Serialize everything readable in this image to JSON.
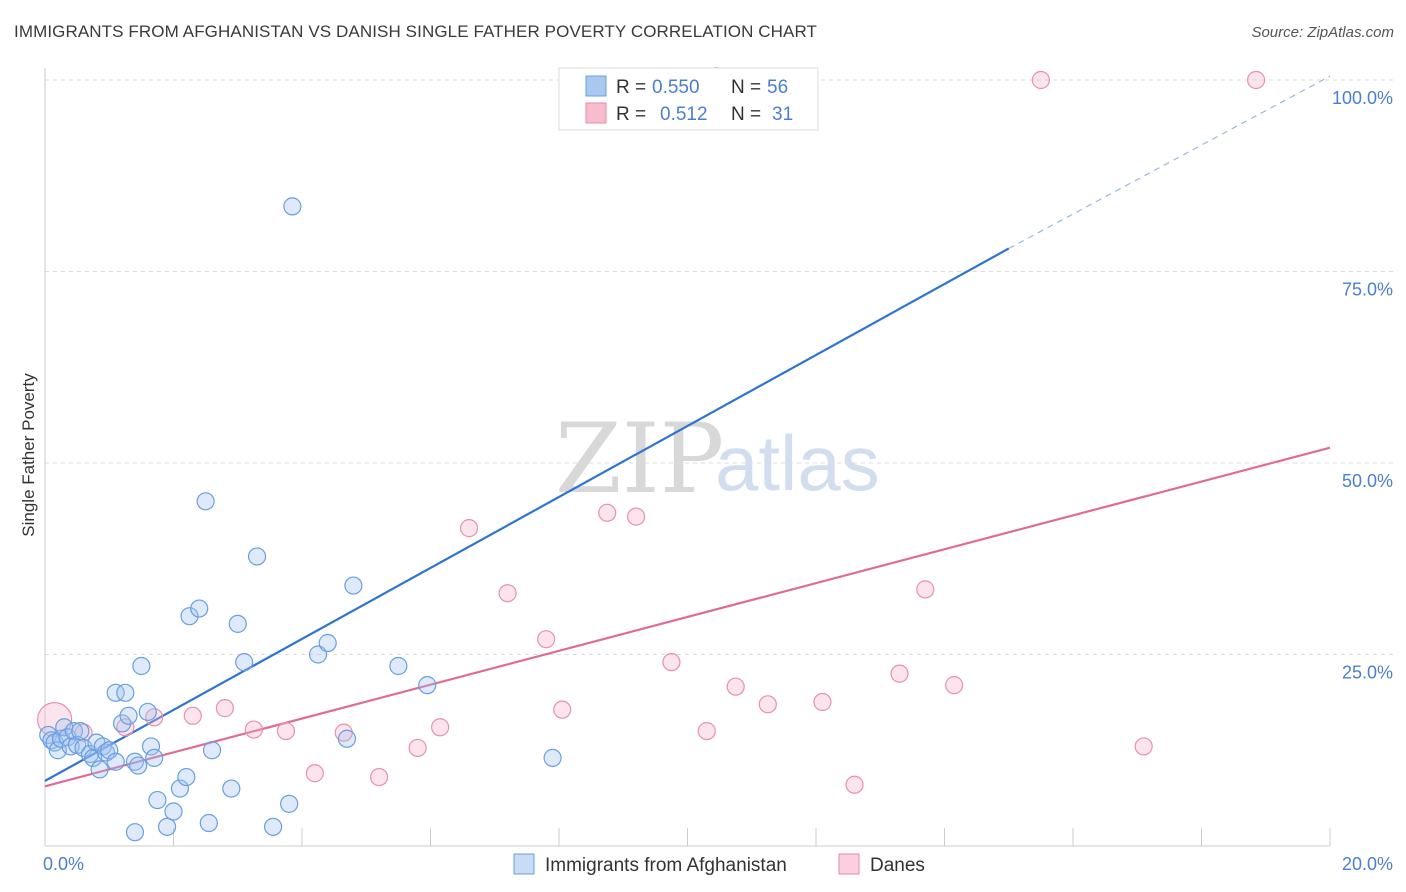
{
  "header": {
    "title": "IMMIGRANTS FROM AFGHANISTAN VS DANISH SINGLE FATHER POVERTY CORRELATION CHART",
    "source": "Source: ZipAtlas.com"
  },
  "watermark": {
    "zip": "ZIP",
    "atlas": "atlas"
  },
  "legend_top": [
    {
      "r_label": "R =",
      "r_value": "0.550",
      "n_label": "N =",
      "n_value": "56",
      "color": "#a9c8f0",
      "stroke": "#6a9ee0"
    },
    {
      "r_label": "R =",
      "r_value": "0.512",
      "n_label": "N =",
      "n_value": "31",
      "color": "#f7bccd",
      "stroke": "#e88aa8"
    }
  ],
  "legend_bottom": [
    {
      "label": "Immigrants from Afghanistan",
      "color": "#c6dcf7",
      "stroke": "#6a9ee0"
    },
    {
      "label": "Danes",
      "color": "#f9d0dc",
      "stroke": "#e88aa8"
    }
  ],
  "colors": {
    "blue_fill": "rgba(160,196,240,0.35)",
    "blue_stroke": "#6a9ee0",
    "blue_line": "#2f74d0",
    "pink_fill": "rgba(246,178,200,0.35)",
    "pink_stroke": "#e890ad",
    "pink_line": "#e06b94",
    "axis_label": "#4a7fd0",
    "grid": "#dddddd"
  },
  "chart_data": {
    "type": "scatter",
    "title": "IMMIGRANTS FROM AFGHANISTAN VS DANISH SINGLE FATHER POVERTY CORRELATION CHART",
    "xlabel": "",
    "ylabel": "Single Father Poverty",
    "xlim": [
      0,
      20
    ],
    "ylim": [
      0,
      100
    ],
    "x_tick_labels": [
      {
        "value": 0,
        "label": "0.0%"
      },
      {
        "value": 20,
        "label": "20.0%"
      }
    ],
    "y_tick_labels": [
      {
        "value": 25,
        "label": "25.0%"
      },
      {
        "value": 50,
        "label": "50.0%"
      },
      {
        "value": 75,
        "label": "75.0%"
      },
      {
        "value": 100,
        "label": "100.0%"
      }
    ],
    "series": [
      {
        "name": "Immigrants from Afghanistan",
        "R": 0.55,
        "N": 56,
        "trend": {
          "x0": 0,
          "y0": 8.5,
          "x1": 15,
          "y1": 78,
          "dash_x1": 20,
          "dash_y1": 100.5
        },
        "points": [
          [
            0.05,
            14.5
          ],
          [
            0.1,
            13.8
          ],
          [
            0.15,
            13.5
          ],
          [
            0.2,
            12.5
          ],
          [
            0.25,
            14
          ],
          [
            0.3,
            15.5
          ],
          [
            0.35,
            14.2
          ],
          [
            0.4,
            13
          ],
          [
            0.45,
            15
          ],
          [
            0.5,
            13.2
          ],
          [
            0.55,
            15
          ],
          [
            0.6,
            12.8
          ],
          [
            0.7,
            12
          ],
          [
            0.75,
            11.5
          ],
          [
            0.8,
            13.5
          ],
          [
            0.85,
            10
          ],
          [
            0.9,
            13
          ],
          [
            0.95,
            12.2
          ],
          [
            1.0,
            12.5
          ],
          [
            1.1,
            11
          ],
          [
            1.1,
            20
          ],
          [
            1.2,
            16
          ],
          [
            1.25,
            20
          ],
          [
            1.3,
            17
          ],
          [
            1.4,
            11
          ],
          [
            1.45,
            10.5
          ],
          [
            1.5,
            23.5
          ],
          [
            1.6,
            17.5
          ],
          [
            1.65,
            13
          ],
          [
            1.7,
            11.5
          ],
          [
            1.75,
            6
          ],
          [
            1.9,
            2.5
          ],
          [
            2.0,
            4.5
          ],
          [
            2.1,
            7.5
          ],
          [
            2.2,
            9
          ],
          [
            2.25,
            30
          ],
          [
            2.4,
            31
          ],
          [
            2.5,
            45
          ],
          [
            2.55,
            3
          ],
          [
            2.6,
            12.5
          ],
          [
            2.9,
            7.5
          ],
          [
            3.0,
            29
          ],
          [
            3.1,
            24
          ],
          [
            3.3,
            37.8
          ],
          [
            3.55,
            2.5
          ],
          [
            3.8,
            5.5
          ],
          [
            3.85,
            83.5
          ],
          [
            4.25,
            25
          ],
          [
            4.4,
            26.5
          ],
          [
            4.7,
            14
          ],
          [
            4.8,
            34
          ],
          [
            5.5,
            23.5
          ],
          [
            5.95,
            21
          ],
          [
            7.9,
            11.5
          ],
          [
            10.45,
            100.5
          ],
          [
            1.4,
            1.8
          ]
        ]
      },
      {
        "name": "Danes",
        "R": 0.512,
        "N": 31,
        "trend": {
          "x0": 0,
          "y0": 7.8,
          "x1": 20,
          "y1": 52
        },
        "points": [
          [
            0.15,
            16.5
          ],
          [
            0.6,
            14.8
          ],
          [
            1.25,
            15.5
          ],
          [
            1.7,
            16.8
          ],
          [
            2.3,
            17
          ],
          [
            2.8,
            18
          ],
          [
            3.25,
            15.2
          ],
          [
            3.75,
            15
          ],
          [
            4.2,
            9.5
          ],
          [
            4.65,
            14.8
          ],
          [
            5.2,
            9
          ],
          [
            5.8,
            12.8
          ],
          [
            6.15,
            15.5
          ],
          [
            6.6,
            41.5
          ],
          [
            7.2,
            33
          ],
          [
            7.8,
            27
          ],
          [
            8.05,
            17.8
          ],
          [
            8.75,
            43.5
          ],
          [
            9.2,
            43
          ],
          [
            9.75,
            24
          ],
          [
            10.3,
            15
          ],
          [
            10.75,
            20.8
          ],
          [
            11.25,
            18.5
          ],
          [
            12.1,
            18.8
          ],
          [
            12.6,
            8
          ],
          [
            13.3,
            22.5
          ],
          [
            13.7,
            33.5
          ],
          [
            14.15,
            21
          ],
          [
            15.5,
            100
          ],
          [
            17.1,
            13
          ],
          [
            18.85,
            100
          ]
        ]
      }
    ]
  }
}
